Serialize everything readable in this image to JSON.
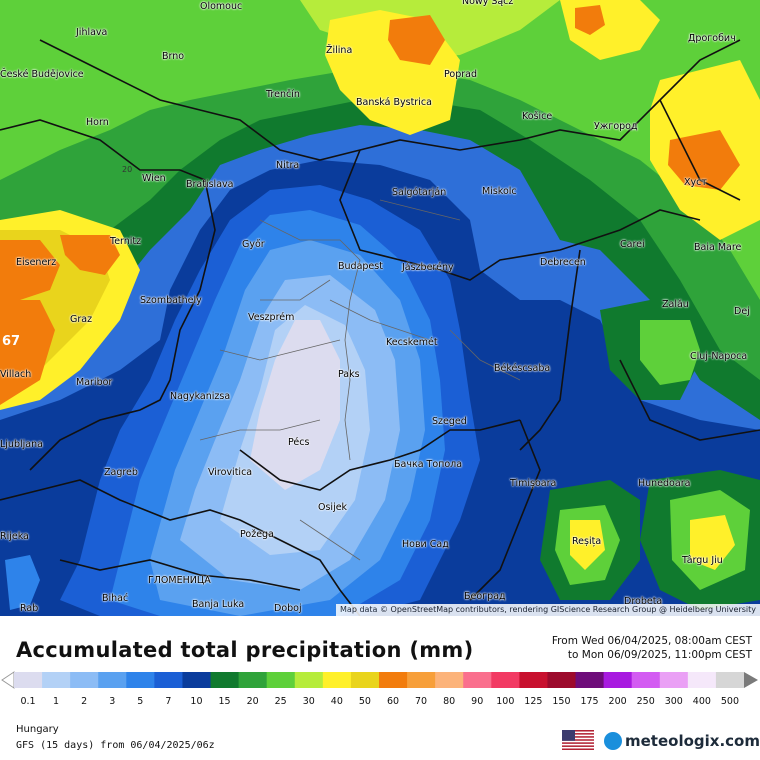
{
  "map": {
    "attribution": "Map data © OpenStreetMap contributors, rendering GIScience Research Group @ Heidelberg University",
    "contour_label_20": "20",
    "edge_label_67": "67",
    "cities": [
      {
        "name": "Olomouc"
      },
      {
        "name": "Nowy Sącz"
      },
      {
        "name": "Дрогобич"
      },
      {
        "name": "Jihlava"
      },
      {
        "name": "Brno"
      },
      {
        "name": "Žilina"
      },
      {
        "name": "České Budějovice"
      },
      {
        "name": "Poprad"
      },
      {
        "name": "Trenčín"
      },
      {
        "name": "Banská Bystrica"
      },
      {
        "name": "Košice"
      },
      {
        "name": "Ужгород"
      },
      {
        "name": "Horn"
      },
      {
        "name": "Nitra"
      },
      {
        "name": "Wien"
      },
      {
        "name": "Bratislava"
      },
      {
        "name": "Хуст"
      },
      {
        "name": "Salgótarján"
      },
      {
        "name": "Miskolc"
      },
      {
        "name": "Ternitz"
      },
      {
        "name": "Győr"
      },
      {
        "name": "Carei"
      },
      {
        "name": "Baia Mare"
      },
      {
        "name": "Eisenerz"
      },
      {
        "name": "Budapest"
      },
      {
        "name": "Jászberény"
      },
      {
        "name": "Debrecen"
      },
      {
        "name": "Szombathely"
      },
      {
        "name": "Zalău"
      },
      {
        "name": "Graz"
      },
      {
        "name": "Veszprém"
      },
      {
        "name": "Dej"
      },
      {
        "name": "Kecskemét"
      },
      {
        "name": "Cluj-Napoca"
      },
      {
        "name": "Villach"
      },
      {
        "name": "Maribor"
      },
      {
        "name": "Paks"
      },
      {
        "name": "Békéscsaba"
      },
      {
        "name": "Nagykanizsa"
      },
      {
        "name": "Szeged"
      },
      {
        "name": "Ljubljana"
      },
      {
        "name": "Pécs"
      },
      {
        "name": "Бачка Топола"
      },
      {
        "name": "Zagreb"
      },
      {
        "name": "Virovitica"
      },
      {
        "name": "Timișoara"
      },
      {
        "name": "Hunedoara"
      },
      {
        "name": "Osijek"
      },
      {
        "name": "Reșița"
      },
      {
        "name": "Požega"
      },
      {
        "name": "Нови Сад"
      },
      {
        "name": "Târgu Jiu"
      },
      {
        "name": "ГЛОМЕНИЦА"
      },
      {
        "name": "Bihać"
      },
      {
        "name": "Banja Luka"
      },
      {
        "name": "Doboj"
      },
      {
        "name": "Београд"
      },
      {
        "name": "Drobeta"
      },
      {
        "name": "Rab"
      },
      {
        "name": "Rijeka"
      }
    ]
  },
  "header": {
    "title": "Accumulated total precipitation (mm)",
    "period_from": "From Wed 06/04/2025, 08:00am CEST",
    "period_to": "to Mon 06/09/2025, 11:00pm CEST"
  },
  "legend": {
    "labels": [
      "0.1",
      "1",
      "2",
      "3",
      "5",
      "7",
      "10",
      "15",
      "20",
      "25",
      "30",
      "40",
      "50",
      "60",
      "70",
      "80",
      "90",
      "100",
      "125",
      "150",
      "175",
      "200",
      "250",
      "300",
      "400",
      "500"
    ],
    "colors": [
      "#dcdcef",
      "#b3d1f6",
      "#8cbcf5",
      "#5aa1f0",
      "#2e83ea",
      "#1b5fd5",
      "#0a3c9c",
      "#107a2e",
      "#2fa33a",
      "#5ed03a",
      "#b6ec3b",
      "#fff02a",
      "#e9d41c",
      "#f27c0c",
      "#f79f3a",
      "#fcb37a",
      "#fa6f8d",
      "#f23a63",
      "#c8102e",
      "#9c0a2c",
      "#6e0c7a",
      "#a81ae0",
      "#d35cf2",
      "#eaa0f5",
      "#f5e8fa",
      "#d6d6d6"
    ]
  },
  "footer": {
    "region": "Hungary",
    "model": "GFS (15 days) from 06/04/2025/06z",
    "brand": "meteologix.com"
  }
}
